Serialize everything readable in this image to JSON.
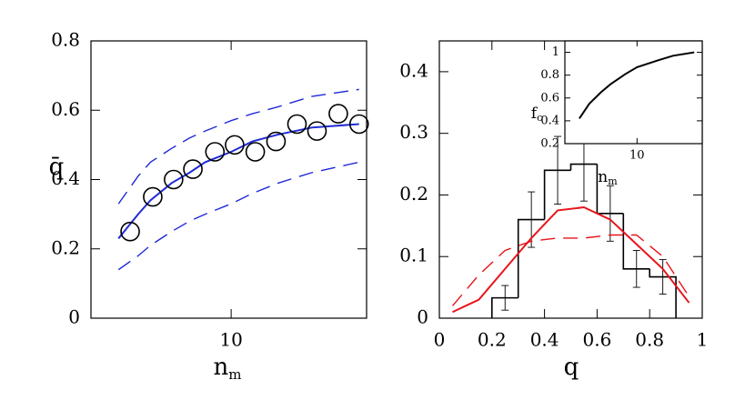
{
  "chart_data": [
    {
      "type": "line",
      "y_label": "q̄",
      "x_label": "n",
      "x_label_sub": "m",
      "xscale": "log",
      "xlim": [
        3,
        32
      ],
      "xticks": [
        10
      ],
      "ylim": [
        0,
        0.8
      ],
      "yticks": [
        0,
        0.2,
        0.4,
        0.6,
        0.8
      ],
      "series": [
        {
          "color": "#1f2ad6",
          "style": "solid",
          "x": [
            3.8,
            4.5,
            5,
            6,
            7,
            8,
            10,
            12,
            15,
            20,
            30
          ],
          "values": [
            0.23,
            0.3,
            0.34,
            0.39,
            0.42,
            0.45,
            0.48,
            0.51,
            0.53,
            0.55,
            0.56
          ]
        },
        {
          "color": "#1f2ad6",
          "style": "dashed",
          "x": [
            3.8,
            4.5,
            5,
            6,
            7,
            8,
            10,
            12,
            15,
            20,
            30
          ],
          "values": [
            0.33,
            0.41,
            0.45,
            0.49,
            0.52,
            0.54,
            0.57,
            0.59,
            0.61,
            0.64,
            0.66
          ]
        },
        {
          "color": "#1f2ad6",
          "style": "dashed",
          "x": [
            3.8,
            4.5,
            5,
            6,
            7,
            8,
            10,
            12,
            15,
            20,
            30
          ],
          "values": [
            0.14,
            0.18,
            0.21,
            0.25,
            0.28,
            0.3,
            0.33,
            0.36,
            0.39,
            0.42,
            0.45
          ]
        },
        {
          "color": "#000000",
          "marker": "circle",
          "x": [
            4.2,
            5.1,
            6.1,
            7.2,
            8.7,
            10.3,
            12.3,
            14.7,
            17.6,
            20.9,
            25.1,
            30
          ],
          "values": [
            0.25,
            0.35,
            0.4,
            0.43,
            0.48,
            0.5,
            0.48,
            0.51,
            0.56,
            0.54,
            0.59,
            0.56
          ]
        }
      ]
    },
    {
      "type": "histogram",
      "x_label": "q",
      "xlim": [
        0,
        1
      ],
      "xticks": [
        0,
        0.2,
        0.4,
        0.6,
        0.8,
        1
      ],
      "ylim": [
        0,
        0.45
      ],
      "yticks": [
        0,
        0.1,
        0.2,
        0.3,
        0.4
      ],
      "color": "#000000",
      "bins": [
        0.2,
        0.3,
        0.4,
        0.5,
        0.6,
        0.7,
        0.8,
        0.9
      ],
      "counts": [
        0.033,
        0.16,
        0.24,
        0.25,
        0.17,
        0.08,
        0.067
      ],
      "errors": [
        0.02,
        0.045,
        0.055,
        0.06,
        0.045,
        0.03,
        0.028
      ],
      "series": [
        {
          "color": "#e8141c",
          "style": "solid",
          "x": [
            0.05,
            0.15,
            0.25,
            0.35,
            0.45,
            0.55,
            0.65,
            0.75,
            0.85,
            0.95
          ],
          "values": [
            0.01,
            0.03,
            0.08,
            0.13,
            0.175,
            0.18,
            0.16,
            0.12,
            0.08,
            0.025
          ]
        },
        {
          "color": "#e8141c",
          "style": "dashed",
          "x": [
            0.05,
            0.15,
            0.25,
            0.35,
            0.45,
            0.55,
            0.65,
            0.75,
            0.85,
            0.95
          ],
          "values": [
            0.02,
            0.07,
            0.11,
            0.125,
            0.13,
            0.13,
            0.135,
            0.135,
            0.1,
            0.035
          ]
        }
      ]
    },
    {
      "type": "line",
      "y_label": "f",
      "y_label_sub": "c",
      "x_label": "n",
      "x_label_sub": "m",
      "xscale": "log",
      "xlim": [
        2.5,
        35
      ],
      "xticks": [
        10
      ],
      "ylim": [
        0.2,
        1.1
      ],
      "yticks": [
        0.2,
        0.4,
        0.6,
        0.8,
        1
      ],
      "series": [
        {
          "color": "#000000",
          "style": "solid",
          "x": [
            3.3,
            4,
            5,
            6,
            8,
            10,
            15,
            20,
            30
          ],
          "values": [
            0.42,
            0.55,
            0.65,
            0.72,
            0.81,
            0.87,
            0.93,
            0.97,
            1.0
          ]
        }
      ]
    }
  ]
}
